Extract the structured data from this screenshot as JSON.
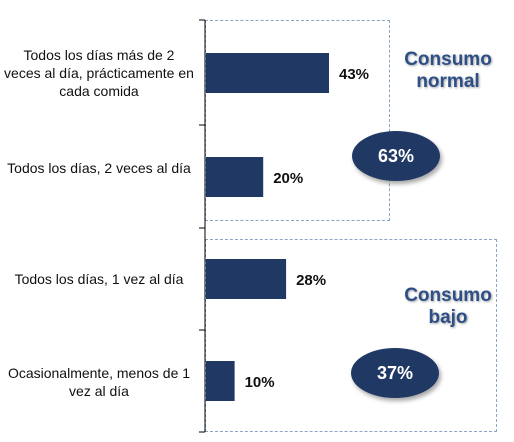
{
  "chart_data": {
    "type": "bar",
    "orientation": "horizontal",
    "categories": [
      "Todos los días más de 2 veces al día, prácticamente en cada comida",
      "Todos los días, 2 veces al día",
      "Todos los días, 1 vez al día",
      "Ocasionalmente, menos de 1 vez al día"
    ],
    "values": [
      43,
      20,
      28,
      10
    ],
    "value_labels": [
      "43%",
      "20%",
      "28%",
      "10%"
    ],
    "xlim": [
      0,
      100
    ],
    "groups": [
      {
        "label": "Consumo normal",
        "total": "63%",
        "categories": [
          0,
          1
        ]
      },
      {
        "label": "Consumo bajo",
        "total": "37%",
        "categories": [
          2,
          3
        ]
      }
    ],
    "colors": {
      "bar": "#203864",
      "group_text": "#2d4f86",
      "oval": "#203864",
      "box_border": "#8aa6c4"
    }
  }
}
